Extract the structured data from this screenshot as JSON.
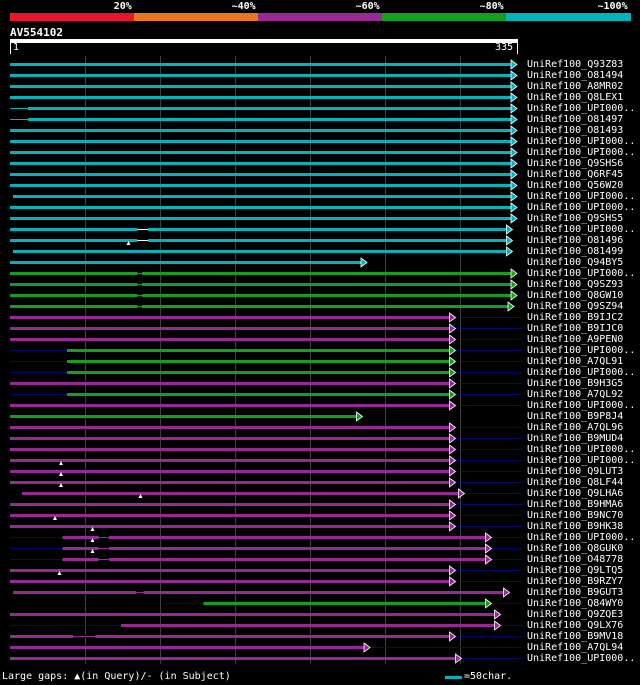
{
  "query": {
    "name": "AV554102",
    "start": "1",
    "end": "335"
  },
  "legend": [
    {
      "label": "20%",
      "color": "#e8142c"
    },
    {
      "label": "~40%",
      "color": "#e8781e"
    },
    {
      "label": "~60%",
      "color": "#9a2898"
    },
    {
      "label": "~80%",
      "color": "#14a01e"
    },
    {
      "label": "~100%",
      "color": "#00b4be"
    }
  ],
  "hits": [
    {
      "name": "UniRef100_Q93Z83",
      "color": "teal",
      "start": 1,
      "end": 335
    },
    {
      "name": "UniRef100_O81494",
      "color": "teal",
      "start": 1,
      "end": 335
    },
    {
      "name": "UniRef100_A8MR02",
      "color": "teal",
      "start": 1,
      "end": 335
    },
    {
      "name": "UniRef100_Q8LEX1",
      "color": "teal",
      "start": 1,
      "end": 335
    },
    {
      "name": "UniRef100_UPI000..",
      "color": "teal",
      "start": 1,
      "end": 335,
      "thin": [
        [
          1,
          13
        ]
      ]
    },
    {
      "name": "UniRef100_O81497",
      "color": "teal",
      "start": 1,
      "end": 335,
      "thin": [
        [
          1,
          13
        ]
      ]
    },
    {
      "name": "UniRef100_O81493",
      "color": "teal",
      "start": 1,
      "end": 335
    },
    {
      "name": "UniRef100_UPI000..",
      "color": "teal",
      "start": 1,
      "end": 335
    },
    {
      "name": "UniRef100_UPI000..",
      "color": "teal",
      "start": 1,
      "end": 335
    },
    {
      "name": "UniRef100_Q9SHS6",
      "color": "teal",
      "start": 1,
      "end": 335
    },
    {
      "name": "UniRef100_Q6RF45",
      "color": "teal",
      "start": 1,
      "end": 335
    },
    {
      "name": "UniRef100_Q56W20",
      "color": "teal",
      "start": 1,
      "end": 335
    },
    {
      "name": "UniRef100_UPI000..",
      "color": "teal",
      "start": 3,
      "end": 335
    },
    {
      "name": "UniRef100_UPI000..",
      "color": "teal",
      "start": 1,
      "end": 335
    },
    {
      "name": "UniRef100_Q9SHS5",
      "color": "teal",
      "start": 1,
      "end": 335
    },
    {
      "name": "UniRef100_UPI000..",
      "color": "teal",
      "start": 1,
      "end": 332,
      "gaps": [
        [
          86,
          93
        ]
      ]
    },
    {
      "name": "UniRef100_O81496",
      "color": "teal",
      "start": 1,
      "end": 332,
      "gaps": [
        [
          86,
          93
        ]
      ]
    },
    {
      "name": "UniRef100_O81499",
      "color": "teal",
      "start": 3,
      "end": 332,
      "ins": 80
    },
    {
      "name": "UniRef100_Q94BY5",
      "color": "teal",
      "start": 1,
      "end": 235
    },
    {
      "name": "UniRef100_UPI000..",
      "color": "green",
      "start": 1,
      "end": 335,
      "thin": [
        [
          86,
          89
        ]
      ]
    },
    {
      "name": "UniRef100_Q9SZ93",
      "color": "green",
      "start": 1,
      "end": 335,
      "thin": [
        [
          86,
          89
        ]
      ]
    },
    {
      "name": "UniRef100_Q8GW10",
      "color": "green",
      "start": 1,
      "end": 335,
      "thin": [
        [
          86,
          89
        ]
      ]
    },
    {
      "name": "UniRef100_Q9SZ94",
      "color": "green",
      "start": 1,
      "end": 333,
      "thin": [
        [
          86,
          89
        ]
      ]
    },
    {
      "name": "UniRef100_B9IJC2",
      "color": "purple",
      "start": 1,
      "end": 294,
      "tail": 341
    },
    {
      "name": "UniRef100_B9IJC0",
      "color": "purple",
      "start": 1,
      "end": 294,
      "tail": 341
    },
    {
      "name": "UniRef100_A9PEN0",
      "color": "purple",
      "start": 1,
      "end": 294,
      "tail": 341
    },
    {
      "name": "UniRef100_UPI000..",
      "color": "green",
      "start": 39,
      "end": 294,
      "pre": 1,
      "tail": 341
    },
    {
      "name": "UniRef100_A7QL91",
      "color": "green",
      "start": 39,
      "end": 294,
      "pre": 1,
      "tail": 341
    },
    {
      "name": "UniRef100_UPI000..",
      "color": "green",
      "start": 39,
      "end": 294,
      "pre": 1,
      "tail": 341
    },
    {
      "name": "UniRef100_B9H3G5",
      "color": "purple",
      "start": 1,
      "end": 294,
      "tail": 341
    },
    {
      "name": "UniRef100_A7QL92",
      "color": "green",
      "start": 39,
      "end": 294,
      "pre": 1,
      "tail": 341
    },
    {
      "name": "UniRef100_UPI000..",
      "color": "purple",
      "start": 1,
      "end": 294,
      "tail": 341
    },
    {
      "name": "UniRef100_B9P8J4",
      "color": "green",
      "start": 1,
      "end": 232
    },
    {
      "name": "UniRef100_A7QL96",
      "color": "purple",
      "start": 1,
      "end": 294,
      "tail": 341
    },
    {
      "name": "UniRef100_B9MUD4",
      "color": "purple",
      "start": 1,
      "end": 294,
      "tail": 341
    },
    {
      "name": "UniRef100_UPI000..",
      "color": "purple",
      "start": 1,
      "end": 294,
      "tail": 341
    },
    {
      "name": "UniRef100_UPI000..",
      "color": "purple",
      "start": 1,
      "end": 294,
      "tail": 341
    },
    {
      "name": "UniRef100_Q9LUT3",
      "color": "purple",
      "start": 1,
      "end": 294,
      "tail": 341,
      "ins": 35
    },
    {
      "name": "UniRef100_Q8LF44",
      "color": "purple",
      "start": 1,
      "end": 294,
      "tail": 341,
      "ins": 35
    },
    {
      "name": "UniRef100_Q9LHA6",
      "color": "purple",
      "start": 9,
      "end": 300,
      "tail": 341,
      "ins": 35
    },
    {
      "name": "UniRef100_B9HMA6",
      "color": "purple",
      "start": 1,
      "end": 294,
      "tail": 341,
      "ins": 88
    },
    {
      "name": "UniRef100_B9NC70",
      "color": "purple",
      "start": 1,
      "end": 294,
      "tail": 341
    },
    {
      "name": "UniRef100_B9HK38",
      "color": "purple",
      "start": 1,
      "end": 294,
      "tail": 341,
      "ins": 31
    },
    {
      "name": "UniRef100_UPI000..",
      "color": "purple",
      "start": 36,
      "end": 318,
      "pre": 1,
      "tail": 341,
      "ins": 56,
      "thin": [
        [
          60,
          67
        ]
      ]
    },
    {
      "name": "UniRef100_Q8GUK0",
      "color": "purple",
      "start": 36,
      "end": 318,
      "pre": 1,
      "tail": 341,
      "ins": 56,
      "thin": [
        [
          60,
          67
        ]
      ]
    },
    {
      "name": "UniRef100_O48778",
      "color": "purple",
      "start": 36,
      "end": 318,
      "pre": 1,
      "tail": 341,
      "ins": 56,
      "thin": [
        [
          60,
          67
        ]
      ]
    },
    {
      "name": "UniRef100_Q9LTQ5",
      "color": "purple",
      "start": 1,
      "end": 294,
      "tail": 341
    },
    {
      "name": "UniRef100_B9RZY7",
      "color": "purple",
      "start": 1,
      "end": 294,
      "tail": 341,
      "ins": 34
    },
    {
      "name": "UniRef100_B9GUT3",
      "color": "purple",
      "start": 3,
      "end": 330,
      "thin": [
        [
          85,
          90
        ]
      ]
    },
    {
      "name": "UniRef100_Q84WY0",
      "color": "green",
      "start": 130,
      "end": 318,
      "pre": 105,
      "tail": 341
    },
    {
      "name": "UniRef100_Q9ZQE3",
      "color": "purple",
      "start": 1,
      "end": 324
    },
    {
      "name": "UniRef100_Q9LX76",
      "color": "purple",
      "start": 75,
      "end": 324,
      "pre": 1,
      "tail": 341
    },
    {
      "name": "UniRef100_B9MV18",
      "color": "purple",
      "start": 1,
      "end": 294,
      "tail": 341,
      "thin": [
        [
          43,
          58
        ]
      ]
    },
    {
      "name": "UniRef100_A7QL94",
      "color": "purple",
      "start": 1,
      "end": 237,
      "tail": 341
    },
    {
      "name": "UniRef100_UPI000..",
      "color": "purple",
      "start": 1,
      "end": 298,
      "tail": 341
    }
  ],
  "footer": {
    "gaps_text": "Large gaps: ▲(in Query)/- (in Subject)",
    "scale_text": "=50char."
  }
}
